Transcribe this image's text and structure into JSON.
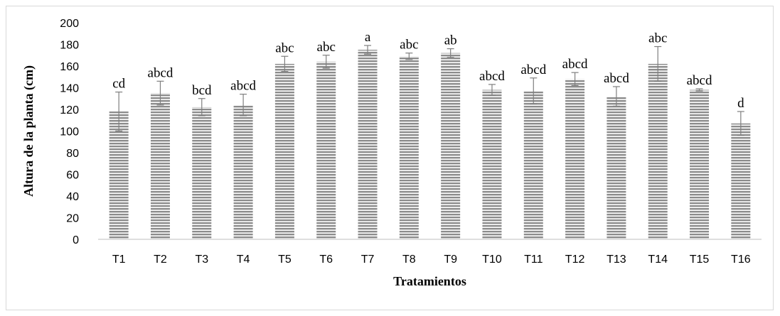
{
  "chart_data": {
    "type": "bar",
    "title": "",
    "xlabel": "Tratamientos",
    "ylabel": "Altura de la planta (cm)",
    "ylim": [
      0,
      200
    ],
    "yticks": [
      0,
      20,
      40,
      60,
      80,
      100,
      120,
      140,
      160,
      180,
      200
    ],
    "grid": false,
    "legend": "none",
    "bar_color": "#8c8c8c",
    "categories": [
      "T1",
      "T2",
      "T3",
      "T4",
      "T5",
      "T6",
      "T7",
      "T8",
      "T9",
      "T10",
      "T11",
      "T12",
      "T13",
      "T14",
      "T15",
      "T16"
    ],
    "values": [
      118,
      135,
      122,
      124,
      162,
      164,
      175,
      169,
      172,
      138,
      137,
      148,
      132,
      162,
      138,
      107
    ],
    "error": [
      18,
      11,
      8,
      10,
      7,
      6,
      4,
      3,
      4,
      5,
      12,
      6,
      9,
      16,
      1,
      11
    ],
    "significance": [
      "cd",
      "abcd",
      "bcd",
      "abcd",
      "abc",
      "abc",
      "a",
      "abc",
      "ab",
      "abcd",
      "abcd",
      "abcd",
      "abcd",
      "abc",
      "abcd",
      "d"
    ]
  }
}
